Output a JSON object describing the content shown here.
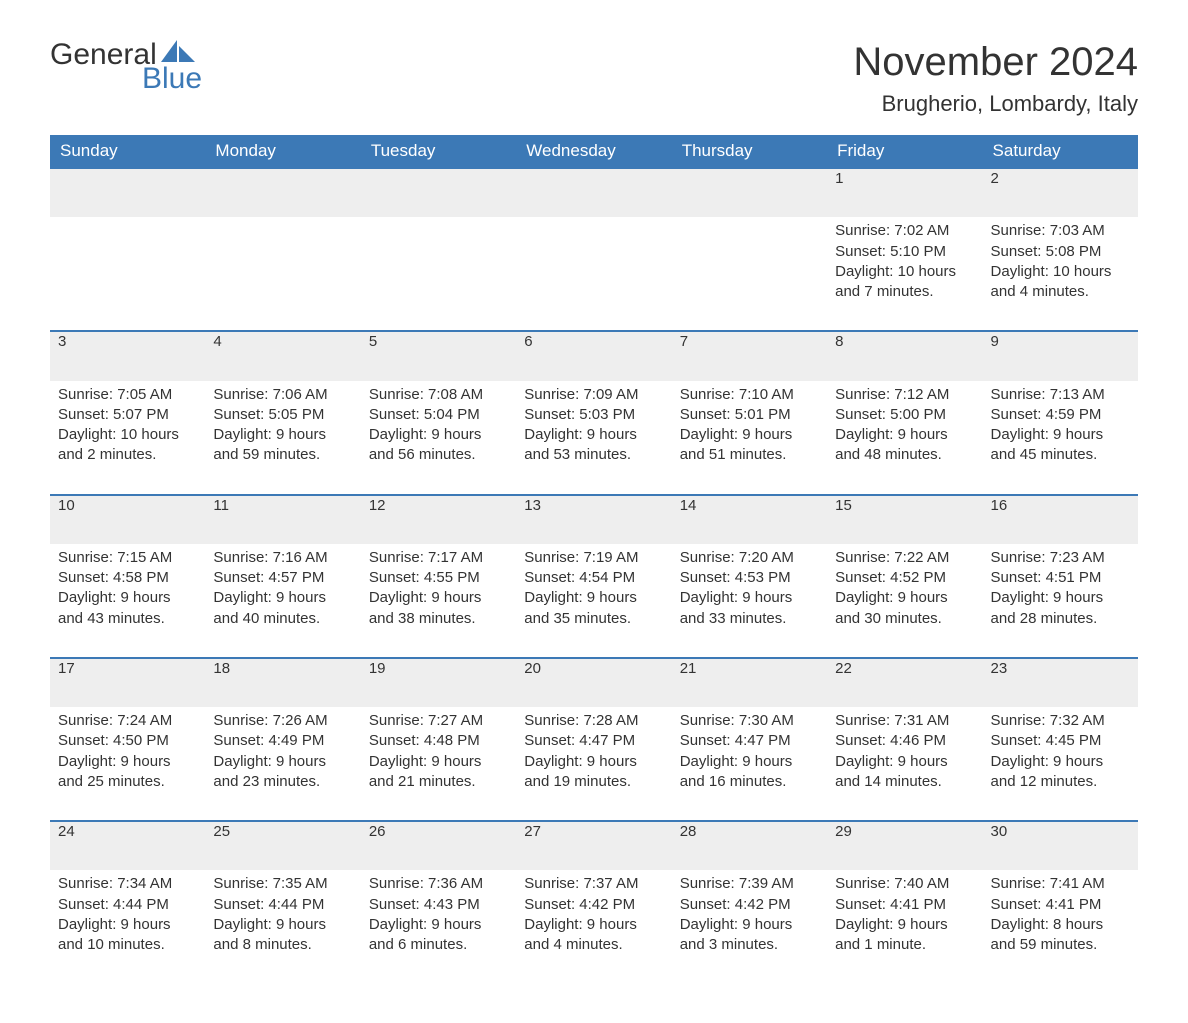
{
  "logo": {
    "word1": "General",
    "word2": "Blue",
    "sail_color": "#3c79b6"
  },
  "title": "November 2024",
  "subtitle": "Brugherio, Lombardy, Italy",
  "header_bg": "#3c79b6",
  "header_fg": "#ffffff",
  "daynum_bg": "#eeeeee",
  "border_color": "#3c79b6",
  "text_color": "#333333",
  "columns": [
    "Sunday",
    "Monday",
    "Tuesday",
    "Wednesday",
    "Thursday",
    "Friday",
    "Saturday"
  ],
  "weeks": [
    [
      null,
      null,
      null,
      null,
      null,
      {
        "n": "1",
        "sunrise": "7:02 AM",
        "sunset": "5:10 PM",
        "daylight": "10 hours and 7 minutes."
      },
      {
        "n": "2",
        "sunrise": "7:03 AM",
        "sunset": "5:08 PM",
        "daylight": "10 hours and 4 minutes."
      }
    ],
    [
      {
        "n": "3",
        "sunrise": "7:05 AM",
        "sunset": "5:07 PM",
        "daylight": "10 hours and 2 minutes."
      },
      {
        "n": "4",
        "sunrise": "7:06 AM",
        "sunset": "5:05 PM",
        "daylight": "9 hours and 59 minutes."
      },
      {
        "n": "5",
        "sunrise": "7:08 AM",
        "sunset": "5:04 PM",
        "daylight": "9 hours and 56 minutes."
      },
      {
        "n": "6",
        "sunrise": "7:09 AM",
        "sunset": "5:03 PM",
        "daylight": "9 hours and 53 minutes."
      },
      {
        "n": "7",
        "sunrise": "7:10 AM",
        "sunset": "5:01 PM",
        "daylight": "9 hours and 51 minutes."
      },
      {
        "n": "8",
        "sunrise": "7:12 AM",
        "sunset": "5:00 PM",
        "daylight": "9 hours and 48 minutes."
      },
      {
        "n": "9",
        "sunrise": "7:13 AM",
        "sunset": "4:59 PM",
        "daylight": "9 hours and 45 minutes."
      }
    ],
    [
      {
        "n": "10",
        "sunrise": "7:15 AM",
        "sunset": "4:58 PM",
        "daylight": "9 hours and 43 minutes."
      },
      {
        "n": "11",
        "sunrise": "7:16 AM",
        "sunset": "4:57 PM",
        "daylight": "9 hours and 40 minutes."
      },
      {
        "n": "12",
        "sunrise": "7:17 AM",
        "sunset": "4:55 PM",
        "daylight": "9 hours and 38 minutes."
      },
      {
        "n": "13",
        "sunrise": "7:19 AM",
        "sunset": "4:54 PM",
        "daylight": "9 hours and 35 minutes."
      },
      {
        "n": "14",
        "sunrise": "7:20 AM",
        "sunset": "4:53 PM",
        "daylight": "9 hours and 33 minutes."
      },
      {
        "n": "15",
        "sunrise": "7:22 AM",
        "sunset": "4:52 PM",
        "daylight": "9 hours and 30 minutes."
      },
      {
        "n": "16",
        "sunrise": "7:23 AM",
        "sunset": "4:51 PM",
        "daylight": "9 hours and 28 minutes."
      }
    ],
    [
      {
        "n": "17",
        "sunrise": "7:24 AM",
        "sunset": "4:50 PM",
        "daylight": "9 hours and 25 minutes."
      },
      {
        "n": "18",
        "sunrise": "7:26 AM",
        "sunset": "4:49 PM",
        "daylight": "9 hours and 23 minutes."
      },
      {
        "n": "19",
        "sunrise": "7:27 AM",
        "sunset": "4:48 PM",
        "daylight": "9 hours and 21 minutes."
      },
      {
        "n": "20",
        "sunrise": "7:28 AM",
        "sunset": "4:47 PM",
        "daylight": "9 hours and 19 minutes."
      },
      {
        "n": "21",
        "sunrise": "7:30 AM",
        "sunset": "4:47 PM",
        "daylight": "9 hours and 16 minutes."
      },
      {
        "n": "22",
        "sunrise": "7:31 AM",
        "sunset": "4:46 PM",
        "daylight": "9 hours and 14 minutes."
      },
      {
        "n": "23",
        "sunrise": "7:32 AM",
        "sunset": "4:45 PM",
        "daylight": "9 hours and 12 minutes."
      }
    ],
    [
      {
        "n": "24",
        "sunrise": "7:34 AM",
        "sunset": "4:44 PM",
        "daylight": "9 hours and 10 minutes."
      },
      {
        "n": "25",
        "sunrise": "7:35 AM",
        "sunset": "4:44 PM",
        "daylight": "9 hours and 8 minutes."
      },
      {
        "n": "26",
        "sunrise": "7:36 AM",
        "sunset": "4:43 PM",
        "daylight": "9 hours and 6 minutes."
      },
      {
        "n": "27",
        "sunrise": "7:37 AM",
        "sunset": "4:42 PM",
        "daylight": "9 hours and 4 minutes."
      },
      {
        "n": "28",
        "sunrise": "7:39 AM",
        "sunset": "4:42 PM",
        "daylight": "9 hours and 3 minutes."
      },
      {
        "n": "29",
        "sunrise": "7:40 AM",
        "sunset": "4:41 PM",
        "daylight": "9 hours and 1 minute."
      },
      {
        "n": "30",
        "sunrise": "7:41 AM",
        "sunset": "4:41 PM",
        "daylight": "8 hours and 59 minutes."
      }
    ]
  ],
  "labels": {
    "sunrise": "Sunrise: ",
    "sunset": "Sunset: ",
    "daylight": "Daylight: "
  }
}
